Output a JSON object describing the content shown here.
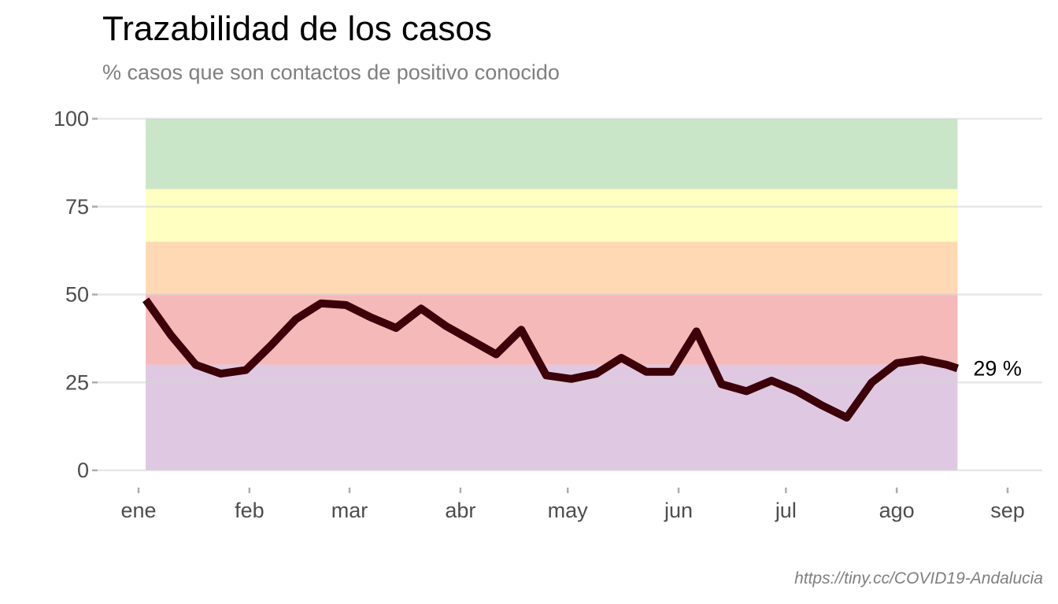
{
  "chart_data": {
    "type": "line",
    "title": "Trazabilidad de los casos",
    "subtitle": "% casos que son contactos de positivo conocido",
    "caption": "https://tiny.cc/COVID19-Andalucia",
    "xlabel": "",
    "ylabel": "",
    "ylim": [
      0,
      100
    ],
    "xlim": [
      "2021-01-01",
      "2021-09-01"
    ],
    "y_ticks": [
      0,
      25,
      50,
      75,
      100
    ],
    "x_ticks": [
      {
        "date": "2021-01-01",
        "label": "ene"
      },
      {
        "date": "2021-02-01",
        "label": "feb"
      },
      {
        "date": "2021-03-01",
        "label": "mar"
      },
      {
        "date": "2021-04-01",
        "label": "abr"
      },
      {
        "date": "2021-05-01",
        "label": "may"
      },
      {
        "date": "2021-06-01",
        "label": "jun"
      },
      {
        "date": "2021-07-01",
        "label": "jul"
      },
      {
        "date": "2021-08-01",
        "label": "ago"
      },
      {
        "date": "2021-09-01",
        "label": "sep"
      }
    ],
    "bands": [
      {
        "from": 80,
        "to": 100,
        "color": "#c9e7c8"
      },
      {
        "from": 65,
        "to": 80,
        "color": "#feffc0"
      },
      {
        "from": 50,
        "to": 65,
        "color": "#fed9b4"
      },
      {
        "from": 30,
        "to": 50,
        "color": "#f5b9ba"
      },
      {
        "from": 0,
        "to": 30,
        "color": "#dfc8e2"
      }
    ],
    "bands_x_range": [
      "2021-01-03",
      "2021-08-18"
    ],
    "series": [
      {
        "color": "#3b0008",
        "x": [
          "2021-01-03",
          "2021-01-10",
          "2021-01-17",
          "2021-01-24",
          "2021-01-31",
          "2021-02-07",
          "2021-02-14",
          "2021-02-21",
          "2021-02-28",
          "2021-03-07",
          "2021-03-14",
          "2021-03-21",
          "2021-03-28",
          "2021-04-04",
          "2021-04-11",
          "2021-04-18",
          "2021-04-25",
          "2021-05-02",
          "2021-05-09",
          "2021-05-16",
          "2021-05-23",
          "2021-05-30",
          "2021-06-06",
          "2021-06-13",
          "2021-06-20",
          "2021-06-27",
          "2021-07-04",
          "2021-07-11",
          "2021-07-18",
          "2021-07-25",
          "2021-08-01",
          "2021-08-08",
          "2021-08-15",
          "2021-08-18"
        ],
        "values": [
          48.5,
          38.5,
          30,
          27.5,
          28.5,
          35.5,
          43,
          47.5,
          47,
          43.5,
          40.5,
          46,
          41,
          37,
          33,
          40,
          27,
          26,
          27.5,
          32,
          28,
          28,
          39.5,
          24.5,
          22.5,
          25.5,
          22.5,
          18.5,
          15,
          25,
          30.5,
          31.5,
          30,
          29
        ]
      }
    ],
    "end_label": "29 %",
    "grid": true,
    "legend": "none"
  }
}
